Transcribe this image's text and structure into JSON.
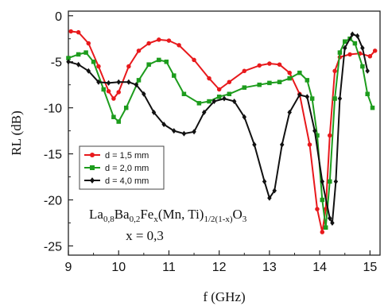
{
  "chart_data": {
    "type": "line",
    "xlabel": "f (GHz)",
    "ylabel": "RL (dB)",
    "xlim": [
      9,
      15.2
    ],
    "ylim": [
      -26,
      0.5
    ],
    "xticks": [
      9,
      10,
      11,
      12,
      13,
      14,
      15
    ],
    "yticks": [
      0,
      -5,
      -10,
      -15,
      -20,
      -25
    ],
    "grid": false,
    "legend_position": "middle-left",
    "annotation": {
      "line1": [
        {
          "t": "La",
          "sub": false
        },
        {
          "t": "0,8",
          "sub": true
        },
        {
          "t": "Ba",
          "sub": false
        },
        {
          "t": "0,2",
          "sub": true
        },
        {
          "t": "Fe",
          "sub": false
        },
        {
          "t": "x",
          "sub": true
        },
        {
          "t": "(Mn, Ti)",
          "sub": false
        },
        {
          "t": "1/2(1-x)",
          "sub": true
        },
        {
          "t": "O",
          "sub": false
        },
        {
          "t": "3",
          "sub": true
        }
      ],
      "line2": "x = 0,3"
    },
    "series": [
      {
        "name": "d = 1,5 mm",
        "color": "#e8191c",
        "marker": "circle",
        "points": [
          [
            9.05,
            -1.7
          ],
          [
            9.2,
            -1.8
          ],
          [
            9.4,
            -3.0
          ],
          [
            9.6,
            -5.5
          ],
          [
            9.8,
            -8.2
          ],
          [
            9.9,
            -9.0
          ],
          [
            10.0,
            -8.3
          ],
          [
            10.2,
            -5.5
          ],
          [
            10.4,
            -3.8
          ],
          [
            10.6,
            -3.0
          ],
          [
            10.8,
            -2.6
          ],
          [
            11.0,
            -2.7
          ],
          [
            11.2,
            -3.2
          ],
          [
            11.5,
            -4.8
          ],
          [
            11.8,
            -6.8
          ],
          [
            12.0,
            -8.0
          ],
          [
            12.2,
            -7.2
          ],
          [
            12.5,
            -6.0
          ],
          [
            12.8,
            -5.4
          ],
          [
            13.0,
            -5.2
          ],
          [
            13.2,
            -5.3
          ],
          [
            13.4,
            -6.2
          ],
          [
            13.6,
            -8.5
          ],
          [
            13.8,
            -14.0
          ],
          [
            13.95,
            -21.0
          ],
          [
            14.05,
            -23.5
          ],
          [
            14.12,
            -21.0
          ],
          [
            14.2,
            -13.0
          ],
          [
            14.3,
            -6.0
          ],
          [
            14.4,
            -4.5
          ],
          [
            14.6,
            -4.2
          ],
          [
            14.8,
            -4.1
          ],
          [
            15.0,
            -4.4
          ],
          [
            15.1,
            -3.8
          ]
        ]
      },
      {
        "name": "d = 2,0 mm",
        "color": "#1d9c1d",
        "marker": "square",
        "points": [
          [
            9.0,
            -4.6
          ],
          [
            9.2,
            -4.2
          ],
          [
            9.35,
            -4.0
          ],
          [
            9.5,
            -5.0
          ],
          [
            9.7,
            -8.0
          ],
          [
            9.9,
            -11.0
          ],
          [
            10.0,
            -11.5
          ],
          [
            10.15,
            -10.0
          ],
          [
            10.4,
            -7.0
          ],
          [
            10.6,
            -5.3
          ],
          [
            10.8,
            -4.8
          ],
          [
            10.95,
            -5.0
          ],
          [
            11.1,
            -6.5
          ],
          [
            11.3,
            -8.5
          ],
          [
            11.6,
            -9.5
          ],
          [
            11.8,
            -9.3
          ],
          [
            12.0,
            -8.8
          ],
          [
            12.2,
            -8.5
          ],
          [
            12.5,
            -7.8
          ],
          [
            12.8,
            -7.5
          ],
          [
            13.0,
            -7.3
          ],
          [
            13.2,
            -7.2
          ],
          [
            13.4,
            -6.8
          ],
          [
            13.6,
            -6.2
          ],
          [
            13.75,
            -7.0
          ],
          [
            13.85,
            -9.0
          ],
          [
            13.95,
            -13.0
          ],
          [
            14.05,
            -20.0
          ],
          [
            14.12,
            -23.0
          ],
          [
            14.2,
            -18.0
          ],
          [
            14.3,
            -9.0
          ],
          [
            14.4,
            -4.0
          ],
          [
            14.5,
            -2.8
          ],
          [
            14.6,
            -2.5
          ],
          [
            14.7,
            -3.0
          ],
          [
            14.85,
            -5.5
          ],
          [
            14.95,
            -8.5
          ],
          [
            15.05,
            -10.0
          ]
        ]
      },
      {
        "name": "d = 4,0 mm",
        "color": "#111111",
        "marker": "diamond",
        "points": [
          [
            9.0,
            -5.0
          ],
          [
            9.2,
            -5.3
          ],
          [
            9.4,
            -6.0
          ],
          [
            9.6,
            -7.2
          ],
          [
            9.8,
            -7.3
          ],
          [
            10.0,
            -7.2
          ],
          [
            10.2,
            -7.2
          ],
          [
            10.35,
            -7.5
          ],
          [
            10.5,
            -8.5
          ],
          [
            10.7,
            -10.5
          ],
          [
            10.9,
            -11.8
          ],
          [
            11.1,
            -12.5
          ],
          [
            11.3,
            -12.8
          ],
          [
            11.5,
            -12.6
          ],
          [
            11.7,
            -10.5
          ],
          [
            11.9,
            -9.3
          ],
          [
            12.1,
            -9.0
          ],
          [
            12.3,
            -9.3
          ],
          [
            12.5,
            -11.0
          ],
          [
            12.7,
            -14.0
          ],
          [
            12.9,
            -18.0
          ],
          [
            13.0,
            -19.8
          ],
          [
            13.1,
            -19.0
          ],
          [
            13.25,
            -14.0
          ],
          [
            13.4,
            -10.5
          ],
          [
            13.6,
            -8.6
          ],
          [
            13.75,
            -8.8
          ],
          [
            13.9,
            -12.5
          ],
          [
            14.05,
            -18.0
          ],
          [
            14.2,
            -22.0
          ],
          [
            14.25,
            -22.5
          ],
          [
            14.32,
            -18.0
          ],
          [
            14.4,
            -9.0
          ],
          [
            14.5,
            -3.5
          ],
          [
            14.65,
            -2.0
          ],
          [
            14.75,
            -2.2
          ],
          [
            14.85,
            -3.5
          ],
          [
            14.95,
            -6.0
          ]
        ]
      }
    ]
  }
}
